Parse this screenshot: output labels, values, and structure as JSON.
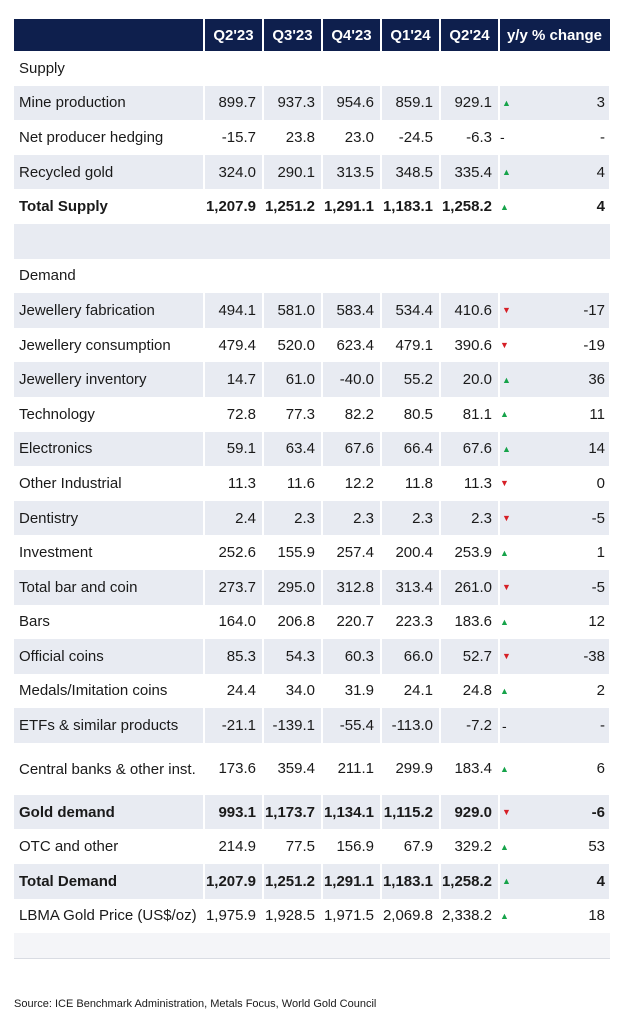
{
  "headers": [
    "",
    "Q2'23",
    "Q3'23",
    "Q4'23",
    "Q1'24",
    "Q2'24",
    "y/y % change"
  ],
  "sections": [
    {
      "title": "Supply",
      "rows": [
        {
          "label": "Mine production",
          "values": [
            "899.7",
            "937.3",
            "954.6",
            "859.1",
            "929.1"
          ],
          "trend": "up",
          "yoy": "3",
          "bold": false
        },
        {
          "label": "Net producer hedging",
          "values": [
            "-15.7",
            "23.8",
            "23.0",
            "-24.5",
            "-6.3"
          ],
          "trend": "none",
          "yoy": "-",
          "bold": false
        },
        {
          "label": "Recycled gold",
          "values": [
            "324.0",
            "290.1",
            "313.5",
            "348.5",
            "335.4"
          ],
          "trend": "up",
          "yoy": "4",
          "bold": false
        },
        {
          "label": "Total Supply",
          "values": [
            "1,207.9",
            "1,251.2",
            "1,291.1",
            "1,183.1",
            "1,258.2"
          ],
          "trend": "up",
          "yoy": "4",
          "bold": true
        }
      ]
    },
    {
      "title": "Demand",
      "rows": [
        {
          "label": "Jewellery fabrication",
          "values": [
            "494.1",
            "581.0",
            "583.4",
            "534.4",
            "410.6"
          ],
          "trend": "down",
          "yoy": "-17",
          "bold": false
        },
        {
          "label": "Jewellery consumption",
          "values": [
            "479.4",
            "520.0",
            "623.4",
            "479.1",
            "390.6"
          ],
          "trend": "down",
          "yoy": "-19",
          "bold": false
        },
        {
          "label": "Jewellery inventory",
          "values": [
            "14.7",
            "61.0",
            "-40.0",
            "55.2",
            "20.0"
          ],
          "trend": "up",
          "yoy": "36",
          "bold": false
        },
        {
          "label": "Technology",
          "values": [
            "72.8",
            "77.3",
            "82.2",
            "80.5",
            "81.1"
          ],
          "trend": "up",
          "yoy": "11",
          "bold": false
        },
        {
          "label": "Electronics",
          "values": [
            "59.1",
            "63.4",
            "67.6",
            "66.4",
            "67.6"
          ],
          "trend": "up",
          "yoy": "14",
          "bold": false
        },
        {
          "label": "Other Industrial",
          "values": [
            "11.3",
            "11.6",
            "12.2",
            "11.8",
            "11.3"
          ],
          "trend": "down",
          "yoy": "0",
          "bold": false
        },
        {
          "label": "Dentistry",
          "values": [
            "2.4",
            "2.3",
            "2.3",
            "2.3",
            "2.3"
          ],
          "trend": "down",
          "yoy": "-5",
          "bold": false
        },
        {
          "label": "Investment",
          "values": [
            "252.6",
            "155.9",
            "257.4",
            "200.4",
            "253.9"
          ],
          "trend": "up",
          "yoy": "1",
          "bold": false
        },
        {
          "label": "Total bar and coin",
          "values": [
            "273.7",
            "295.0",
            "312.8",
            "313.4",
            "261.0"
          ],
          "trend": "down",
          "yoy": "-5",
          "bold": false
        },
        {
          "label": "Bars",
          "values": [
            "164.0",
            "206.8",
            "220.7",
            "223.3",
            "183.6"
          ],
          "trend": "up",
          "yoy": "12",
          "bold": false
        },
        {
          "label": "Official coins",
          "values": [
            "85.3",
            "54.3",
            "60.3",
            "66.0",
            "52.7"
          ],
          "trend": "down",
          "yoy": "-38",
          "bold": false
        },
        {
          "label": "Medals/Imitation coins",
          "values": [
            "24.4",
            "34.0",
            "31.9",
            "24.1",
            "24.8"
          ],
          "trend": "up",
          "yoy": "2",
          "bold": false
        },
        {
          "label": "ETFs & similar products",
          "values": [
            "-21.1",
            "-139.1",
            "-55.4",
            "-113.0",
            "-7.2"
          ],
          "trend": "none",
          "yoy": "-",
          "bold": false
        },
        {
          "label": "Central banks & other inst.",
          "values": [
            "173.6",
            "359.4",
            "211.1",
            "299.9",
            "183.4"
          ],
          "trend": "up",
          "yoy": "6",
          "bold": false
        },
        {
          "label": "Gold demand",
          "values": [
            "993.1",
            "1,173.7",
            "1,134.1",
            "1,115.2",
            "929.0"
          ],
          "trend": "down",
          "yoy": "-6",
          "bold": true
        },
        {
          "label": "OTC and other",
          "values": [
            "214.9",
            "77.5",
            "156.9",
            "67.9",
            "329.2"
          ],
          "trend": "up",
          "yoy": "53",
          "bold": false
        },
        {
          "label": "Total Demand",
          "values": [
            "1,207.9",
            "1,251.2",
            "1,291.1",
            "1,183.1",
            "1,258.2"
          ],
          "trend": "up",
          "yoy": "4",
          "bold": true
        },
        {
          "label": "LBMA Gold Price (US$/oz)",
          "values": [
            "1,975.9",
            "1,928.5",
            "1,971.5",
            "2,069.8",
            "2,338.2"
          ],
          "trend": "up",
          "yoy": "18",
          "bold": false
        }
      ]
    }
  ],
  "icons": {
    "up": "▲",
    "down": "▼",
    "none": "-"
  },
  "colors": {
    "header_bg": "#0e1f4d",
    "row_shade": "#e8ebf2",
    "up": "#16a34a",
    "down": "#d61f26"
  },
  "source": "Source: ICE Benchmark Administration, Metals Focus, World Gold Council"
}
